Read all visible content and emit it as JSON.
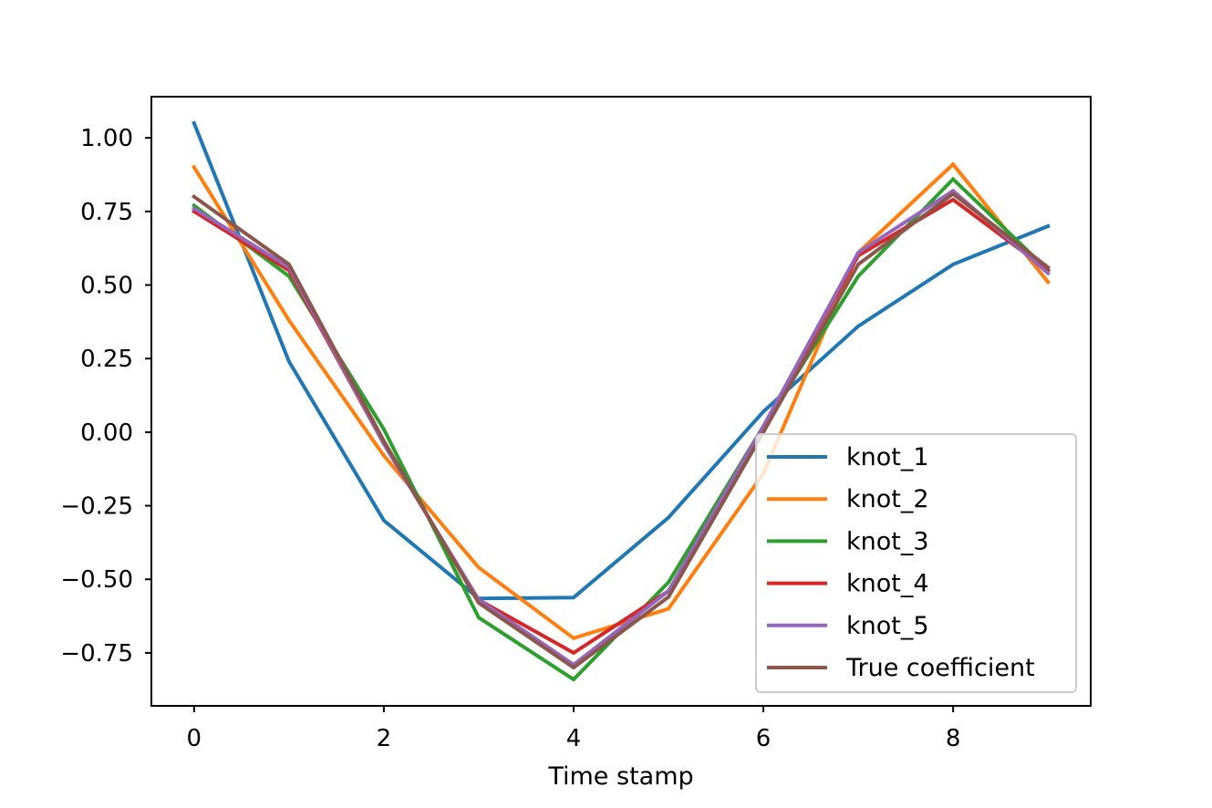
{
  "chart_data": {
    "type": "line",
    "title": "",
    "xlabel": "Time stamp",
    "ylabel": "",
    "xlim": [
      -0.45,
      9.45
    ],
    "ylim": [
      -0.93,
      1.14
    ],
    "xticks": [
      0,
      2,
      4,
      6,
      8
    ],
    "xtick_labels": [
      "0",
      "2",
      "4",
      "6",
      "8"
    ],
    "yticks": [
      1.0,
      0.75,
      0.5,
      0.25,
      0.0,
      -0.25,
      -0.5,
      -0.75
    ],
    "ytick_labels": [
      "1.00",
      "0.75",
      "0.50",
      "0.25",
      "0.00",
      "−0.25",
      "−0.50",
      "−0.75"
    ],
    "grid": false,
    "legend_position": "lower-right",
    "x": [
      0,
      1,
      2,
      3,
      4,
      5,
      6,
      7,
      8,
      9
    ],
    "series": [
      {
        "name": "knot_1",
        "color": "#1f77b4",
        "values": [
          1.05,
          0.24,
          -0.3,
          -0.565,
          -0.562,
          -0.29,
          0.07,
          0.36,
          0.57,
          0.7
        ]
      },
      {
        "name": "knot_2",
        "color": "#ff7f0e",
        "values": [
          0.9,
          0.38,
          -0.08,
          -0.46,
          -0.7,
          -0.6,
          -0.14,
          0.61,
          0.91,
          0.51
        ]
      },
      {
        "name": "knot_3",
        "color": "#2ca02c",
        "values": [
          0.77,
          0.53,
          0.01,
          -0.63,
          -0.84,
          -0.51,
          0.02,
          0.53,
          0.86,
          0.55
        ]
      },
      {
        "name": "knot_4",
        "color": "#d62728",
        "values": [
          0.75,
          0.55,
          -0.04,
          -0.57,
          -0.75,
          -0.54,
          0.02,
          0.6,
          0.79,
          0.55
        ]
      },
      {
        "name": "knot_5",
        "color": "#9467bd",
        "values": [
          0.76,
          0.56,
          -0.04,
          -0.57,
          -0.79,
          -0.54,
          0.02,
          0.61,
          0.82,
          0.54
        ]
      },
      {
        "name": "True coefficient",
        "color": "#8c564b",
        "values": [
          0.8,
          0.57,
          -0.03,
          -0.58,
          -0.8,
          -0.56,
          0.0,
          0.57,
          0.81,
          0.56
        ]
      }
    ]
  }
}
